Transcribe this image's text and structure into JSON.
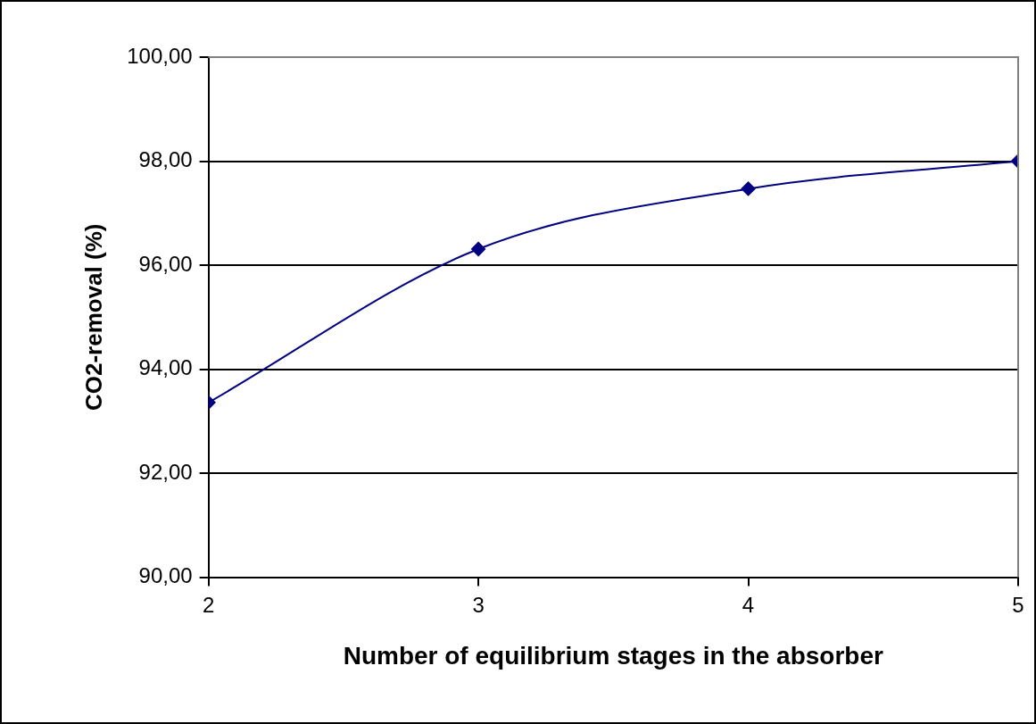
{
  "chart_data": {
    "type": "line",
    "xlabel": "Number of equilibrium stages in the absorber",
    "ylabel": "CO2-removal (%)",
    "x": [
      2,
      3,
      4,
      5
    ],
    "series": [
      {
        "color": "#000080",
        "values": [
          93.36,
          96.31,
          97.47,
          98.0
        ]
      }
    ],
    "xlim": [
      2,
      5
    ],
    "xticks": [
      2,
      3,
      4,
      5
    ],
    "ylim": [
      90,
      100
    ],
    "yticks": [
      {
        "value": 90,
        "label": "90,00"
      },
      {
        "value": 92,
        "label": "92,00"
      },
      {
        "value": 94,
        "label": "94,00"
      },
      {
        "value": 96,
        "label": "96,00"
      },
      {
        "value": 98,
        "label": "98,00"
      },
      {
        "value": 100,
        "label": "100,00"
      }
    ],
    "grid": "y",
    "legend": false,
    "marker": "diamond",
    "line_style": "solid"
  }
}
